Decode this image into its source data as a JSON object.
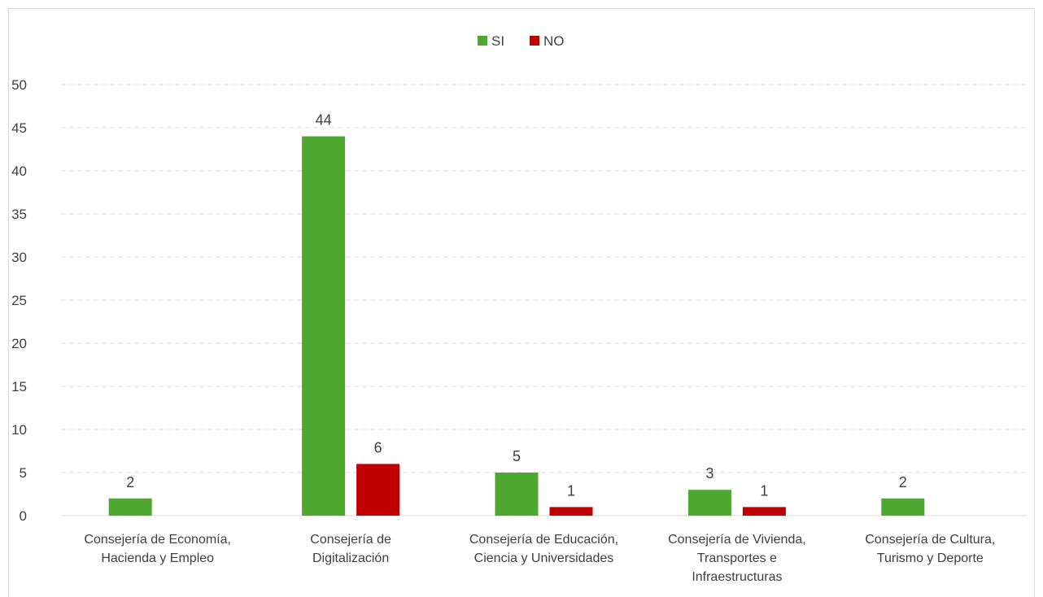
{
  "chart_data": {
    "type": "bar",
    "categories": [
      [
        "Consejería de Economía,",
        "Hacienda y Empleo"
      ],
      [
        "Consejería de",
        "Digitalización"
      ],
      [
        "Consejería de Educación,",
        "Ciencia y Universidades"
      ],
      [
        "Consejería de Vivienda,",
        "Transportes e",
        "Infraestructuras"
      ],
      [
        "Consejería de Cultura,",
        "Turismo y Deporte"
      ]
    ],
    "series": [
      {
        "name": "SI",
        "color": "#4ea72e",
        "values": [
          2,
          44,
          5,
          3,
          2
        ]
      },
      {
        "name": "NO",
        "color": "#c00000",
        "values": [
          null,
          6,
          1,
          1,
          null
        ]
      }
    ],
    "ylim": [
      0,
      50
    ],
    "yticks": [
      0,
      5,
      10,
      15,
      20,
      25,
      30,
      35,
      40,
      45,
      50
    ],
    "grid": true,
    "legend_position": "top-center",
    "title": "",
    "xlabel": "",
    "ylabel": ""
  }
}
